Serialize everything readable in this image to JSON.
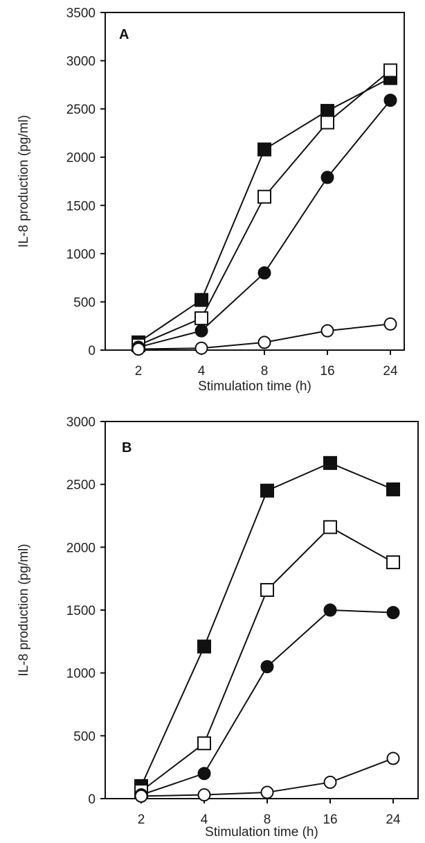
{
  "chart_data": [
    {
      "type": "line",
      "panel_label": "A",
      "title": "",
      "xlabel": "Stimulation time (h)",
      "ylabel": "IL-8 production (pg/ml)",
      "categories": [
        "2",
        "4",
        "8",
        "16",
        "24"
      ],
      "ylim": [
        0,
        3500
      ],
      "yticks": [
        0,
        500,
        1000,
        1500,
        2000,
        2500,
        3000,
        3500
      ],
      "grid": false,
      "legend": "none",
      "series": [
        {
          "marker": "filled-square",
          "values": [
            80,
            520,
            2080,
            2480,
            2820
          ]
        },
        {
          "marker": "open-square",
          "values": [
            50,
            330,
            1590,
            2360,
            2900
          ]
        },
        {
          "marker": "filled-circle",
          "values": [
            30,
            200,
            800,
            1790,
            2590
          ]
        },
        {
          "marker": "open-circle",
          "values": [
            10,
            20,
            80,
            200,
            270
          ]
        }
      ]
    },
    {
      "type": "line",
      "panel_label": "B",
      "title": "",
      "xlabel": "Stimulation time (h)",
      "ylabel": "IL-8 production (pg/ml)",
      "categories": [
        "2",
        "4",
        "8",
        "16",
        "24"
      ],
      "ylim": [
        0,
        3000
      ],
      "yticks": [
        0,
        500,
        1000,
        1500,
        2000,
        2500,
        3000
      ],
      "grid": false,
      "legend": "none",
      "series": [
        {
          "marker": "filled-square",
          "values": [
            100,
            1210,
            2450,
            2670,
            2460
          ]
        },
        {
          "marker": "open-square",
          "values": [
            60,
            440,
            1660,
            2160,
            1880
          ]
        },
        {
          "marker": "filled-circle",
          "values": [
            30,
            200,
            1050,
            1500,
            1480
          ]
        },
        {
          "marker": "open-circle",
          "values": [
            20,
            30,
            50,
            130,
            320
          ]
        }
      ]
    }
  ]
}
